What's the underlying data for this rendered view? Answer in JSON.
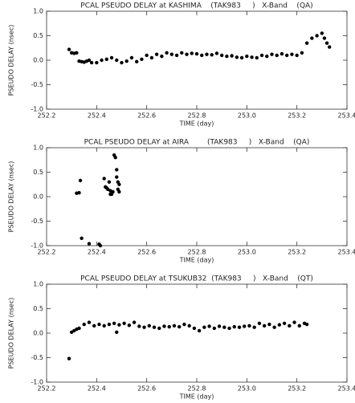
{
  "chart_data": [
    {
      "type": "scatter",
      "title": "PCAL PSEUDO DELAY at KASHIMA    (TAK983     )   X-Band    (QA)",
      "x_label": "TIME (day)",
      "y_label": "PSEUDO DELAY (nsec)",
      "color": "#000000",
      "xlim": [
        252.2,
        253.4
      ],
      "ylim": [
        -1,
        1
      ],
      "xticks": [
        252.2,
        252.4,
        252.6,
        252.8,
        {
          "value": 253.0,
          "label": "253.0"
        },
        253.2,
        253.4
      ],
      "yticks": [
        {
          "value": -1,
          "label": "-1.0"
        },
        -0.5,
        {
          "value": 0,
          "label": "0.0"
        },
        0.5,
        {
          "value": 1,
          "label": "1.0"
        }
      ],
      "x": [
        252.29,
        252.3,
        252.31,
        252.32,
        252.33,
        252.34,
        252.35,
        252.36,
        252.37,
        252.38,
        252.4,
        252.42,
        252.44,
        252.46,
        252.48,
        252.5,
        252.52,
        252.54,
        252.56,
        252.58,
        252.6,
        252.62,
        252.64,
        252.66,
        252.68,
        252.7,
        252.72,
        252.74,
        252.76,
        252.78,
        252.8,
        252.82,
        252.84,
        252.86,
        252.88,
        252.9,
        252.92,
        252.94,
        252.96,
        252.98,
        253.0,
        253.02,
        253.04,
        253.06,
        253.08,
        253.1,
        253.12,
        253.14,
        253.16,
        253.18,
        253.2,
        253.22,
        253.24,
        253.26,
        253.28,
        253.3,
        253.31,
        253.32,
        253.33
      ],
      "values": [
        0.22,
        0.15,
        0.14,
        0.15,
        -0.02,
        -0.03,
        -0.04,
        -0.02,
        0.0,
        -0.05,
        -0.05,
        0.0,
        0.02,
        0.05,
        0.0,
        -0.05,
        -0.02,
        0.05,
        -0.03,
        0.02,
        0.1,
        0.05,
        0.12,
        0.08,
        0.15,
        0.12,
        0.1,
        0.15,
        0.12,
        0.14,
        0.13,
        0.1,
        0.12,
        0.11,
        0.14,
        0.1,
        0.08,
        0.09,
        0.06,
        0.05,
        0.08,
        0.06,
        0.05,
        0.1,
        0.08,
        0.12,
        0.1,
        0.13,
        0.1,
        0.12,
        0.1,
        0.15,
        0.35,
        0.45,
        0.5,
        0.55,
        0.45,
        0.35,
        0.27
      ]
    },
    {
      "type": "scatter",
      "title": "PCAL PSEUDO DELAY at AIRA        (TAK983     )   X-Band    (QA)",
      "x_label": "TIME (day)",
      "y_label": "PSEUDO DELAY (nsec)",
      "color": "#000000",
      "xlim": [
        252.2,
        253.4
      ],
      "ylim": [
        -1,
        1
      ],
      "xticks": [
        252.2,
        252.4,
        252.6,
        252.8,
        {
          "value": 253.0,
          "label": "253.0"
        },
        253.2,
        253.4
      ],
      "yticks": [
        {
          "value": -1,
          "label": "-1.0"
        },
        -0.5,
        {
          "value": 0,
          "label": "0.0"
        },
        0.5,
        {
          "value": 1,
          "label": "1.0"
        }
      ],
      "x": [
        252.32,
        252.33,
        252.335,
        252.34,
        252.37,
        252.41,
        252.415,
        252.43,
        252.435,
        252.44,
        252.445,
        252.45,
        252.455,
        252.46,
        252.465,
        252.47,
        252.475,
        252.48,
        252.48,
        252.485,
        252.485,
        252.49,
        252.49,
        252.455
      ],
      "values": [
        0.07,
        0.08,
        0.33,
        -0.85,
        -0.96,
        -0.97,
        -1.0,
        0.37,
        0.2,
        0.18,
        0.15,
        0.3,
        0.12,
        0.05,
        0.1,
        0.85,
        0.8,
        0.55,
        0.4,
        0.3,
        0.15,
        0.25,
        0.1,
        0.05
      ]
    },
    {
      "type": "scatter",
      "title": "PCAL PSEUDO DELAY at TSUKUB32  (TAK983     )   X-Band    (QT)",
      "x_label": "TIME (day)",
      "y_label": "PSEUDO DELAY (nsec)",
      "color": "#000000",
      "xlim": [
        252.2,
        253.4
      ],
      "ylim": [
        -1,
        1
      ],
      "xticks": [
        252.2,
        252.4,
        252.6,
        252.8,
        {
          "value": 253.0,
          "label": "253.0"
        },
        253.2,
        253.4
      ],
      "yticks": [
        {
          "value": -1,
          "label": "-1.0"
        },
        -0.5,
        {
          "value": 0,
          "label": "0.0"
        },
        0.5,
        {
          "value": 1,
          "label": "1.0"
        }
      ],
      "x": [
        252.29,
        252.3,
        252.31,
        252.32,
        252.33,
        252.35,
        252.37,
        252.39,
        252.41,
        252.43,
        252.45,
        252.47,
        252.48,
        252.49,
        252.51,
        252.53,
        252.55,
        252.57,
        252.59,
        252.61,
        252.63,
        252.65,
        252.67,
        252.69,
        252.71,
        252.73,
        252.75,
        252.77,
        252.79,
        252.81,
        252.83,
        252.85,
        252.87,
        252.89,
        252.91,
        252.93,
        252.95,
        252.97,
        252.99,
        253.01,
        253.03,
        253.05,
        253.07,
        253.09,
        253.11,
        253.13,
        253.15,
        253.17,
        253.19,
        253.21,
        253.23,
        253.24
      ],
      "values": [
        -0.52,
        0.02,
        0.05,
        0.08,
        0.1,
        0.18,
        0.22,
        0.15,
        0.18,
        0.15,
        0.18,
        0.2,
        0.02,
        0.17,
        0.2,
        0.16,
        0.22,
        0.14,
        0.12,
        0.15,
        0.12,
        0.1,
        0.14,
        0.13,
        0.15,
        0.13,
        0.18,
        0.15,
        0.1,
        0.05,
        0.12,
        0.14,
        0.1,
        0.14,
        0.12,
        0.1,
        0.13,
        0.12,
        0.14,
        0.15,
        0.12,
        0.2,
        0.15,
        0.18,
        0.12,
        0.17,
        0.2,
        0.15,
        0.22,
        0.15,
        0.2,
        0.18
      ]
    }
  ]
}
